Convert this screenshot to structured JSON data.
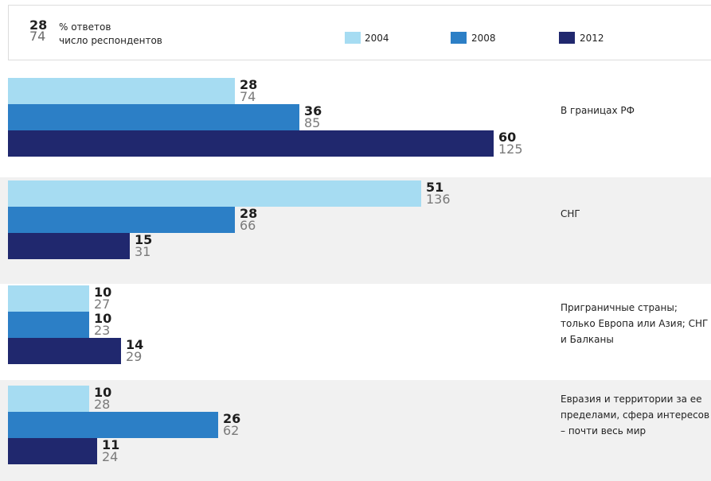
{
  "legend": {
    "pct_sample": "28",
    "count_sample": "74",
    "pct_label": "% ответов",
    "count_label": "число респондентов",
    "years": [
      "2004",
      "2008",
      "2012"
    ]
  },
  "colors": {
    "2004": "#a6dcf2",
    "2008": "#2c7fc6",
    "2012": "#20286e",
    "group_bg": "#f1f1f1"
  },
  "chart_data": {
    "type": "bar",
    "orientation": "horizontal",
    "categories": [
      "В границах РФ",
      "СНГ",
      "Приграничные страны; только Европа или Азия; СНГ и Балканы",
      "Евразия и территории за ее пределами, сфера интересов – почти весь мир"
    ],
    "series": [
      {
        "name": "2004",
        "values": [
          28,
          51,
          10,
          10
        ],
        "respondents": [
          74,
          136,
          27,
          28
        ]
      },
      {
        "name": "2008",
        "values": [
          36,
          28,
          10,
          26
        ],
        "respondents": [
          85,
          66,
          23,
          62
        ]
      },
      {
        "name": "2012",
        "values": [
          60,
          15,
          14,
          11
        ],
        "respondents": [
          125,
          31,
          29,
          24
        ]
      }
    ]
  }
}
